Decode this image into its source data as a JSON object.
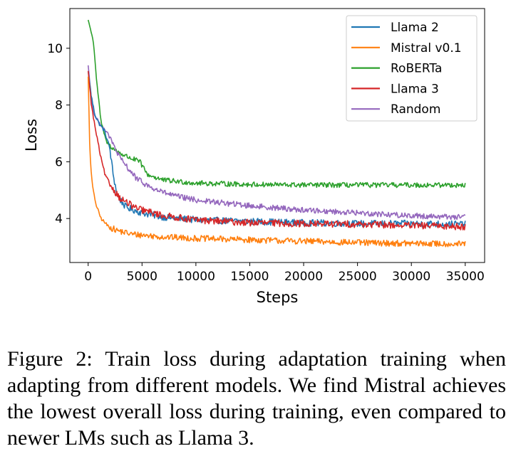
{
  "chart_data": {
    "type": "line",
    "title": "",
    "xlabel": "Steps",
    "ylabel": "Loss",
    "xlim": [
      -1700,
      36800
    ],
    "ylim": [
      2.45,
      11.4
    ],
    "xticks": [
      0,
      5000,
      10000,
      15000,
      20000,
      25000,
      30000,
      35000
    ],
    "yticks": [
      4,
      6,
      8,
      10
    ],
    "grid": false,
    "legend_position": "top-right",
    "series": [
      {
        "name": "Llama 2",
        "color": "#1f77b4",
        "noise": 0.12,
        "points": [
          [
            0,
            9.2
          ],
          [
            300,
            8.3
          ],
          [
            600,
            7.7
          ],
          [
            1000,
            7.35
          ],
          [
            1500,
            7.1
          ],
          [
            2000,
            6.5
          ],
          [
            2300,
            5.6
          ],
          [
            2700,
            4.8
          ],
          [
            3500,
            4.4
          ],
          [
            5000,
            4.2
          ],
          [
            7000,
            4.05
          ],
          [
            10000,
            3.95
          ],
          [
            15000,
            3.9
          ],
          [
            20000,
            3.85
          ],
          [
            25000,
            3.82
          ],
          [
            30000,
            3.82
          ],
          [
            35000,
            3.8
          ]
        ]
      },
      {
        "name": "Mistral v0.1",
        "color": "#ff7f0e",
        "noise": 0.11,
        "points": [
          [
            0,
            9.0
          ],
          [
            150,
            6.5
          ],
          [
            300,
            5.5
          ],
          [
            500,
            4.9
          ],
          [
            800,
            4.4
          ],
          [
            1200,
            4.0
          ],
          [
            1800,
            3.75
          ],
          [
            2500,
            3.6
          ],
          [
            4000,
            3.45
          ],
          [
            7000,
            3.35
          ],
          [
            10000,
            3.3
          ],
          [
            15000,
            3.25
          ],
          [
            20000,
            3.2
          ],
          [
            25000,
            3.15
          ],
          [
            30000,
            3.12
          ],
          [
            35000,
            3.1
          ]
        ]
      },
      {
        "name": "RoBERTa",
        "color": "#2ca02c",
        "noise": 0.09,
        "points": [
          [
            0,
            11.0
          ],
          [
            200,
            10.7
          ],
          [
            500,
            10.2
          ],
          [
            800,
            8.8
          ],
          [
            1200,
            7.4
          ],
          [
            1700,
            6.7
          ],
          [
            2500,
            6.4
          ],
          [
            3500,
            6.2
          ],
          [
            4800,
            6.0
          ],
          [
            5500,
            5.55
          ],
          [
            7000,
            5.35
          ],
          [
            10000,
            5.25
          ],
          [
            15000,
            5.2
          ],
          [
            20000,
            5.18
          ],
          [
            25000,
            5.18
          ],
          [
            30000,
            5.18
          ],
          [
            35000,
            5.18
          ]
        ]
      },
      {
        "name": "Llama 3",
        "color": "#d62728",
        "noise": 0.12,
        "points": [
          [
            0,
            9.2
          ],
          [
            300,
            8.0
          ],
          [
            600,
            7.3
          ],
          [
            900,
            6.7
          ],
          [
            1200,
            6.1
          ],
          [
            1600,
            5.5
          ],
          [
            2200,
            5.1
          ],
          [
            3000,
            4.7
          ],
          [
            4500,
            4.35
          ],
          [
            7000,
            4.1
          ],
          [
            10000,
            3.95
          ],
          [
            15000,
            3.85
          ],
          [
            20000,
            3.82
          ],
          [
            25000,
            3.8
          ],
          [
            30000,
            3.75
          ],
          [
            35000,
            3.72
          ]
        ]
      },
      {
        "name": "Random",
        "color": "#9467bd",
        "noise": 0.1,
        "points": [
          [
            0,
            9.4
          ],
          [
            300,
            8.2
          ],
          [
            600,
            7.6
          ],
          [
            1000,
            7.4
          ],
          [
            1800,
            7.0
          ],
          [
            3000,
            6.1
          ],
          [
            4500,
            5.4
          ],
          [
            6000,
            5.05
          ],
          [
            8000,
            4.8
          ],
          [
            10000,
            4.65
          ],
          [
            15000,
            4.45
          ],
          [
            20000,
            4.3
          ],
          [
            25000,
            4.2
          ],
          [
            30000,
            4.1
          ],
          [
            35000,
            4.05
          ]
        ]
      }
    ]
  },
  "caption": "Figure 2: Train loss during adaptation training when adapting from different models. We find Mistral achieves the lowest overall loss during training, even compared to newer LMs such as Llama 3."
}
